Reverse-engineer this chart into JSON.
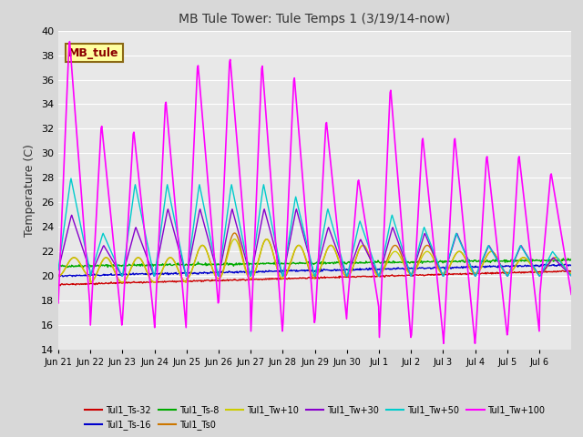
{
  "title": "MB Tule Tower: Tule Temps 1 (3/19/14-now)",
  "ylabel": "Temperature (C)",
  "ylim": [
    14,
    40
  ],
  "yticks": [
    14,
    16,
    18,
    20,
    22,
    24,
    26,
    28,
    30,
    32,
    34,
    36,
    38,
    40
  ],
  "bg_color": "#d8d8d8",
  "plot_bg_color": "#e8e8e8",
  "grid_color": "#ffffff",
  "series": [
    {
      "label": "Tul1_Ts-32",
      "color": "#cc0000",
      "lw": 1.0
    },
    {
      "label": "Tul1_Ts-16",
      "color": "#0000cc",
      "lw": 1.0
    },
    {
      "label": "Tul1_Ts-8",
      "color": "#00aa00",
      "lw": 1.0
    },
    {
      "label": "Tul1_Ts0",
      "color": "#cc7700",
      "lw": 1.0
    },
    {
      "label": "Tul1_Tw+10",
      "color": "#cccc00",
      "lw": 1.0
    },
    {
      "label": "Tul1_Tw+30",
      "color": "#8800cc",
      "lw": 1.0
    },
    {
      "label": "Tul1_Tw+50",
      "color": "#00cccc",
      "lw": 1.0
    },
    {
      "label": "Tul1_Tw+100",
      "color": "#ff00ff",
      "lw": 1.2
    }
  ],
  "x_tick_labels": [
    "Jun 21",
    "Jun 22",
    "Jun 23",
    "Jun 24",
    "Jun 25",
    "Jun 26",
    "Jun 27",
    "Jun 28",
    "Jun 29",
    "Jun 30",
    "Jul 1",
    "Jul 2",
    "Jul 3",
    "Jul 4",
    "Jul 5",
    "Jul 6"
  ],
  "n_days": 16,
  "pts_per_day": 48,
  "annotation_label": "MB_tule",
  "tw100_peaks": [
    39.5,
    32.5,
    32.0,
    34.5,
    37.5,
    38.0,
    37.5,
    36.5,
    32.8,
    28.0,
    35.5,
    31.5,
    31.5,
    30.0,
    30.0,
    28.5
  ],
  "tw100_troughs": [
    17.8,
    16.0,
    16.5,
    15.8,
    17.8,
    18.0,
    15.5,
    16.2,
    16.5,
    17.5,
    15.0,
    15.2,
    14.5,
    15.2,
    15.5,
    18.5
  ],
  "tw50_peaks": [
    28.0,
    23.5,
    27.5,
    27.5,
    27.5,
    27.5,
    27.5,
    26.5,
    25.5,
    24.5,
    25.0,
    24.0,
    23.5,
    22.5,
    22.5,
    22.0
  ],
  "tw50_troughs": [
    20.5,
    20.0,
    20.0,
    20.0,
    20.0,
    20.0,
    20.0,
    20.0,
    20.0,
    20.0,
    20.0,
    20.0,
    20.0,
    20.0,
    20.0,
    20.0
  ],
  "tw30_peaks": [
    25.0,
    22.5,
    24.0,
    25.5,
    25.5,
    25.5,
    25.5,
    25.5,
    24.0,
    23.0,
    24.0,
    23.5,
    23.5,
    22.5,
    22.5,
    21.5
  ],
  "tw30_troughs": [
    20.5,
    20.0,
    20.0,
    20.0,
    20.0,
    20.0,
    20.0,
    20.0,
    20.0,
    20.0,
    20.0,
    20.0,
    20.0,
    20.0,
    20.0,
    20.0
  ],
  "ts0_peaks": [
    21.5,
    21.5,
    21.5,
    21.5,
    22.5,
    23.5,
    23.0,
    22.5,
    22.5,
    22.5,
    22.5,
    22.5,
    22.0,
    22.0,
    21.5,
    21.5
  ],
  "ts0_troughs": [
    20.0,
    19.5,
    19.5,
    19.5,
    19.8,
    19.8,
    19.8,
    19.8,
    20.0,
    20.0,
    20.2,
    20.2,
    20.2,
    20.2,
    20.2,
    20.2
  ],
  "tw10_peaks": [
    21.5,
    21.5,
    21.5,
    21.5,
    22.5,
    23.0,
    23.0,
    22.5,
    22.5,
    22.5,
    22.0,
    22.0,
    22.0,
    22.0,
    21.5,
    21.5
  ],
  "tw10_troughs": [
    20.0,
    19.5,
    19.5,
    19.5,
    19.8,
    19.8,
    19.8,
    20.0,
    20.0,
    20.0,
    20.2,
    20.2,
    20.2,
    20.2,
    20.2,
    20.2
  ]
}
